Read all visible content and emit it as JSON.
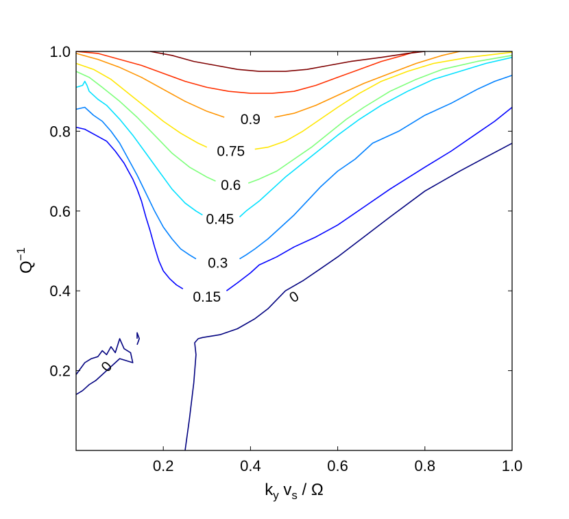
{
  "chart_data": {
    "type": "contour",
    "xlabel": {
      "main": "k",
      "sub1": "y",
      "mid": " v",
      "sub2": "s",
      "tail": " / Ω"
    },
    "ylabel": {
      "main": "Q",
      "sup": "−1"
    },
    "xlim": [
      0.0,
      1.0
    ],
    "ylim": [
      0.0,
      1.0
    ],
    "x_ticks": [
      {
        "value": 0.2,
        "label": "0.2"
      },
      {
        "value": 0.4,
        "label": "0.4"
      },
      {
        "value": 0.6,
        "label": "0.6"
      },
      {
        "value": 0.8,
        "label": "0.8"
      },
      {
        "value": 1.0,
        "label": "1.0"
      }
    ],
    "y_ticks": [
      {
        "value": 0.2,
        "label": "0.2"
      },
      {
        "value": 0.4,
        "label": "0.4"
      },
      {
        "value": 0.6,
        "label": "0.6"
      },
      {
        "value": 0.8,
        "label": "0.8"
      },
      {
        "value": 1.0,
        "label": "1.0"
      }
    ],
    "grid": false,
    "series": [
      {
        "level": "0",
        "color": "#00007f",
        "label": {
          "text": "0",
          "x": 0.5,
          "y": 0.385,
          "angle": -32
        },
        "points": [
          [
            0.25,
            0.0
          ],
          [
            0.26,
            0.08
          ],
          [
            0.27,
            0.17
          ],
          [
            0.275,
            0.24
          ],
          [
            0.272,
            0.27
          ],
          [
            0.28,
            0.28
          ],
          [
            0.29,
            0.283
          ],
          [
            0.33,
            0.29
          ],
          [
            0.37,
            0.305
          ],
          [
            0.41,
            0.33
          ],
          [
            0.44,
            0.355
          ],
          [
            0.48,
            0.4
          ],
          [
            0.52,
            0.425
          ],
          [
            0.56,
            0.455
          ],
          [
            0.6,
            0.485
          ],
          [
            0.66,
            0.535
          ],
          [
            0.72,
            0.585
          ],
          [
            0.8,
            0.65
          ],
          [
            0.88,
            0.7
          ],
          [
            0.94,
            0.735
          ],
          [
            1.0,
            0.77
          ]
        ]
      },
      {
        "level": "0",
        "color": "#00007f",
        "label": {
          "text": "0",
          "x": 0.07,
          "y": 0.21,
          "angle": -48
        },
        "points": [
          [
            0.0,
            0.19
          ],
          [
            0.02,
            0.22
          ],
          [
            0.035,
            0.23
          ],
          [
            0.05,
            0.235
          ],
          [
            0.06,
            0.25
          ],
          [
            0.07,
            0.24
          ],
          [
            0.08,
            0.26
          ],
          [
            0.09,
            0.245
          ],
          [
            0.1,
            0.28
          ],
          [
            0.11,
            0.255
          ],
          [
            0.125,
            0.245
          ],
          [
            0.13,
            0.22
          ],
          [
            0.115,
            0.225
          ],
          [
            0.1,
            0.23
          ],
          [
            0.09,
            0.22
          ],
          [
            0.075,
            0.205
          ],
          [
            0.06,
            0.19
          ],
          [
            0.045,
            0.175
          ],
          [
            0.03,
            0.165
          ],
          [
            0.015,
            0.15
          ],
          [
            0.0,
            0.14
          ]
        ]
      },
      {
        "level": "0",
        "color": "#00007f",
        "label": null,
        "points": [
          [
            0.14,
            0.28
          ],
          [
            0.14,
            0.295
          ],
          [
            0.145,
            0.28
          ],
          [
            0.14,
            0.265
          ]
        ]
      },
      {
        "level": "0.15",
        "color": "#0000ff",
        "label": {
          "text": "0.15",
          "x": 0.3,
          "y": 0.385,
          "angle": 0
        },
        "points": [
          [
            0.0,
            0.81
          ],
          [
            0.02,
            0.805
          ],
          [
            0.045,
            0.79
          ],
          [
            0.07,
            0.775
          ],
          [
            0.09,
            0.75
          ],
          [
            0.11,
            0.72
          ],
          [
            0.12,
            0.7
          ],
          [
            0.13,
            0.68
          ],
          [
            0.14,
            0.655
          ],
          [
            0.15,
            0.625
          ],
          [
            0.16,
            0.585
          ],
          [
            0.17,
            0.55
          ],
          [
            0.18,
            0.51
          ],
          [
            0.19,
            0.475
          ],
          [
            0.2,
            0.45
          ],
          [
            0.215,
            0.43
          ],
          [
            0.23,
            0.415
          ],
          [
            0.245,
            0.405
          ],
          null,
          [
            0.345,
            0.4
          ],
          [
            0.37,
            0.42
          ],
          [
            0.4,
            0.445
          ],
          [
            0.42,
            0.465
          ],
          [
            0.46,
            0.485
          ],
          [
            0.5,
            0.51
          ],
          [
            0.55,
            0.535
          ],
          [
            0.6,
            0.565
          ],
          [
            0.66,
            0.61
          ],
          [
            0.72,
            0.655
          ],
          [
            0.8,
            0.71
          ],
          [
            0.86,
            0.75
          ],
          [
            0.92,
            0.795
          ],
          [
            0.96,
            0.825
          ],
          [
            1.0,
            0.86
          ]
        ]
      },
      {
        "level": "0.3",
        "color": "#0080ff",
        "label": {
          "text": "0.3",
          "x": 0.325,
          "y": 0.47,
          "angle": 0
        },
        "points": [
          [
            0.0,
            0.855
          ],
          [
            0.02,
            0.86
          ],
          [
            0.04,
            0.84
          ],
          [
            0.06,
            0.825
          ],
          [
            0.08,
            0.8
          ],
          [
            0.1,
            0.77
          ],
          [
            0.12,
            0.73
          ],
          [
            0.14,
            0.69
          ],
          [
            0.16,
            0.645
          ],
          [
            0.18,
            0.6
          ],
          [
            0.2,
            0.56
          ],
          [
            0.22,
            0.53
          ],
          [
            0.24,
            0.505
          ],
          [
            0.26,
            0.49
          ],
          [
            0.275,
            0.48
          ],
          null,
          [
            0.375,
            0.48
          ],
          [
            0.39,
            0.49
          ],
          [
            0.41,
            0.505
          ],
          [
            0.44,
            0.53
          ],
          [
            0.47,
            0.56
          ],
          [
            0.5,
            0.59
          ],
          [
            0.53,
            0.625
          ],
          [
            0.56,
            0.66
          ],
          [
            0.6,
            0.7
          ],
          [
            0.64,
            0.73
          ],
          [
            0.68,
            0.77
          ],
          [
            0.74,
            0.8
          ],
          [
            0.8,
            0.84
          ],
          [
            0.86,
            0.87
          ],
          [
            0.92,
            0.905
          ],
          [
            0.96,
            0.925
          ],
          [
            1.0,
            0.94
          ]
        ]
      },
      {
        "level": "0.45",
        "color": "#00e0ff",
        "label": {
          "text": "0.45",
          "x": 0.33,
          "y": 0.58,
          "angle": 0
        },
        "points": [
          [
            0.0,
            0.91
          ],
          [
            0.015,
            0.915
          ],
          [
            0.02,
            0.925
          ],
          [
            0.025,
            0.915
          ],
          [
            0.03,
            0.9
          ],
          [
            0.05,
            0.88
          ],
          [
            0.07,
            0.865
          ],
          [
            0.1,
            0.83
          ],
          [
            0.13,
            0.79
          ],
          [
            0.16,
            0.745
          ],
          [
            0.19,
            0.7
          ],
          [
            0.22,
            0.655
          ],
          [
            0.25,
            0.62
          ],
          [
            0.275,
            0.6
          ],
          [
            0.29,
            0.59
          ],
          null,
          [
            0.375,
            0.585
          ],
          [
            0.39,
            0.6
          ],
          [
            0.42,
            0.625
          ],
          [
            0.45,
            0.655
          ],
          [
            0.48,
            0.685
          ],
          [
            0.52,
            0.72
          ],
          [
            0.56,
            0.755
          ],
          [
            0.6,
            0.79
          ],
          [
            0.65,
            0.83
          ],
          [
            0.7,
            0.865
          ],
          [
            0.76,
            0.9
          ],
          [
            0.82,
            0.93
          ],
          [
            0.88,
            0.95
          ],
          [
            0.94,
            0.97
          ],
          [
            1.0,
            0.985
          ]
        ]
      },
      {
        "level": "0.6",
        "color": "#7cff79",
        "label": {
          "text": "0.6",
          "x": 0.355,
          "y": 0.665,
          "angle": 0
        },
        "points": [
          [
            0.0,
            0.95
          ],
          [
            0.03,
            0.935
          ],
          [
            0.06,
            0.91
          ],
          [
            0.1,
            0.875
          ],
          [
            0.14,
            0.835
          ],
          [
            0.18,
            0.79
          ],
          [
            0.22,
            0.745
          ],
          [
            0.26,
            0.71
          ],
          [
            0.3,
            0.685
          ],
          [
            0.32,
            0.675
          ],
          null,
          [
            0.395,
            0.67
          ],
          [
            0.42,
            0.68
          ],
          [
            0.46,
            0.7
          ],
          [
            0.5,
            0.73
          ],
          [
            0.54,
            0.76
          ],
          [
            0.58,
            0.795
          ],
          [
            0.62,
            0.83
          ],
          [
            0.66,
            0.86
          ],
          [
            0.72,
            0.9
          ],
          [
            0.78,
            0.93
          ],
          [
            0.84,
            0.955
          ],
          [
            0.92,
            0.975
          ],
          [
            1.0,
            0.99
          ]
        ]
      },
      {
        "level": "0.75",
        "color": "#ffe600",
        "label": {
          "text": "0.75",
          "x": 0.355,
          "y": 0.75,
          "angle": 0
        },
        "points": [
          [
            0.0,
            0.97
          ],
          [
            0.04,
            0.955
          ],
          [
            0.08,
            0.93
          ],
          [
            0.12,
            0.895
          ],
          [
            0.16,
            0.86
          ],
          [
            0.2,
            0.825
          ],
          [
            0.24,
            0.795
          ],
          [
            0.28,
            0.77
          ],
          [
            0.3,
            0.76
          ],
          null,
          [
            0.41,
            0.755
          ],
          [
            0.44,
            0.76
          ],
          [
            0.48,
            0.775
          ],
          [
            0.52,
            0.8
          ],
          [
            0.56,
            0.83
          ],
          [
            0.6,
            0.86
          ],
          [
            0.65,
            0.895
          ],
          [
            0.7,
            0.925
          ],
          [
            0.76,
            0.95
          ],
          [
            0.82,
            0.97
          ],
          [
            0.9,
            0.985
          ],
          [
            1.0,
            0.998
          ]
        ]
      },
      {
        "level": "0.9",
        "color": "#ff9400",
        "label": {
          "text": "0.9",
          "x": 0.4,
          "y": 0.83,
          "angle": 0
        },
        "points": [
          [
            0.0,
            0.995
          ],
          [
            0.05,
            0.98
          ],
          [
            0.1,
            0.96
          ],
          [
            0.15,
            0.935
          ],
          [
            0.2,
            0.905
          ],
          [
            0.25,
            0.875
          ],
          [
            0.3,
            0.85
          ],
          [
            0.34,
            0.835
          ],
          null,
          [
            0.455,
            0.835
          ],
          [
            0.5,
            0.845
          ],
          [
            0.55,
            0.865
          ],
          [
            0.6,
            0.89
          ],
          [
            0.66,
            0.92
          ],
          [
            0.72,
            0.945
          ],
          [
            0.78,
            0.97
          ],
          [
            0.84,
            0.99
          ],
          [
            0.88,
            1.0
          ]
        ]
      },
      {
        "level": "0.95",
        "color": "#ff3000",
        "label": null,
        "points": [
          [
            0.0,
            1.0
          ],
          [
            0.05,
            0.995
          ],
          [
            0.1,
            0.98
          ],
          [
            0.15,
            0.965
          ],
          [
            0.2,
            0.945
          ],
          [
            0.25,
            0.925
          ],
          [
            0.3,
            0.91
          ],
          [
            0.35,
            0.9
          ],
          [
            0.4,
            0.895
          ],
          [
            0.45,
            0.895
          ],
          [
            0.5,
            0.9
          ],
          [
            0.55,
            0.915
          ],
          [
            0.6,
            0.935
          ],
          [
            0.65,
            0.955
          ],
          [
            0.7,
            0.975
          ],
          [
            0.75,
            0.99
          ],
          [
            0.78,
            1.0
          ]
        ]
      },
      {
        "level": "0.99",
        "color": "#7f0000",
        "label": null,
        "points": [
          [
            0.17,
            1.0
          ],
          [
            0.22,
            0.99
          ],
          [
            0.27,
            0.975
          ],
          [
            0.32,
            0.965
          ],
          [
            0.37,
            0.955
          ],
          [
            0.42,
            0.95
          ],
          [
            0.48,
            0.95
          ],
          [
            0.53,
            0.955
          ],
          [
            0.58,
            0.965
          ],
          [
            0.63,
            0.975
          ],
          [
            0.7,
            0.985
          ],
          [
            0.76,
            0.995
          ],
          [
            0.8,
            1.0
          ]
        ]
      }
    ]
  }
}
